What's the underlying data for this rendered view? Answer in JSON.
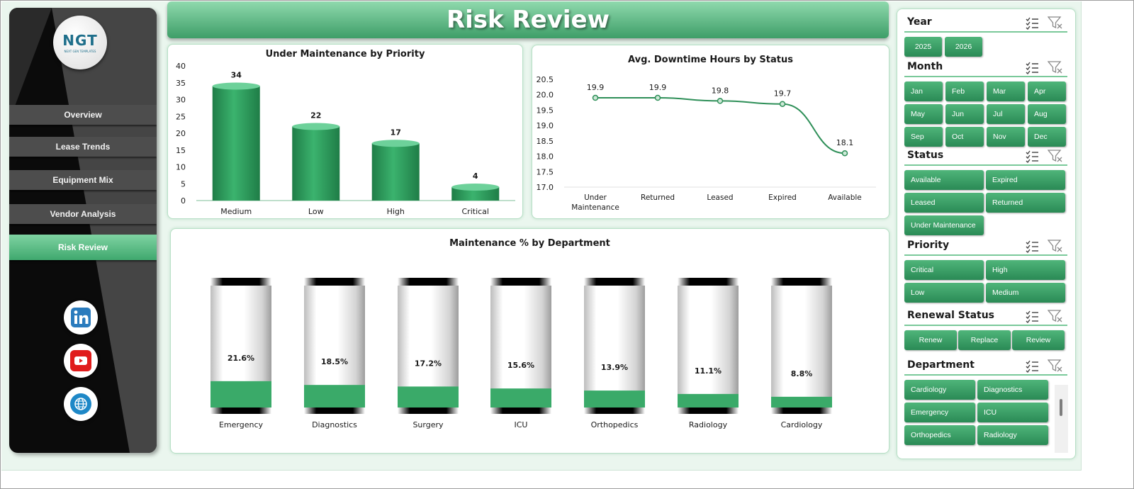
{
  "page": {
    "title": "Risk Review"
  },
  "sidebar": {
    "logo": {
      "text": "NGT",
      "tagline": "NEXT GEN TEMPLATES"
    },
    "nav": [
      {
        "label": "Overview",
        "active": false
      },
      {
        "label": "Lease Trends",
        "active": false
      },
      {
        "label": "Equipment Mix",
        "active": false
      },
      {
        "label": "Vendor Analysis",
        "active": false
      },
      {
        "label": "Risk Review",
        "active": true
      }
    ],
    "social": [
      {
        "icon": "linkedin-icon",
        "color": "#2a7bbd"
      },
      {
        "icon": "youtube-icon",
        "color": "#e01b1b"
      },
      {
        "icon": "globe-icon",
        "color": "#1e88c7"
      }
    ]
  },
  "colors": {
    "accent": "#2e9a5e",
    "accent_light": "#8fd9ad",
    "sidebar_bg": "#0b0b0b",
    "nav_bg": "#4d4d4d"
  },
  "charts": [
    {
      "id": "under-maintenance",
      "chart_data": {
        "type": "bar",
        "title": "Under Maintenance  by Priority",
        "categories": [
          "Medium",
          "Low",
          "High",
          "Critical"
        ],
        "values": [
          34,
          22,
          17,
          4
        ],
        "ylim": [
          0,
          40
        ],
        "yticks": [
          "0",
          "5",
          "10",
          "15",
          "20",
          "25",
          "30",
          "35",
          "40"
        ],
        "grid": false,
        "xlabel": "",
        "ylabel": ""
      }
    },
    {
      "id": "avg-downtime",
      "chart_data": {
        "type": "line",
        "title": "Avg. Downtime Hours by Status",
        "categories": [
          "Under Maintenance",
          "Returned",
          "Leased",
          "Expired",
          "Available"
        ],
        "values": [
          19.9,
          19.9,
          19.8,
          19.7,
          18.1
        ],
        "data_labels": [
          "19.9",
          "19.9",
          "19.8",
          "19.7",
          "18.1"
        ],
        "ylim": [
          17.0,
          20.5
        ],
        "yticks": [
          "17.0",
          "17.5",
          "18.0",
          "18.5",
          "19.0",
          "19.5",
          "20.0",
          "20.5"
        ],
        "grid": false,
        "xlabel": "",
        "ylabel": ""
      }
    },
    {
      "id": "maintenance-pct",
      "chart_data": {
        "type": "bar",
        "title": "Maintenance  % by Department",
        "categories": [
          "Emergency",
          "Diagnostics",
          "Surgery",
          "ICU",
          "Orthopedics",
          "Radiology",
          "Cardiology"
        ],
        "values": [
          21.6,
          18.5,
          17.2,
          15.6,
          13.9,
          11.1,
          8.8
        ],
        "data_labels": [
          "21.6%",
          "18.5%",
          "17.2%",
          "15.6%",
          "13.9%",
          "11.1%",
          "8.8%"
        ],
        "ylim": [
          0,
          100
        ],
        "grid": false,
        "xlabel": "",
        "ylabel": ""
      }
    }
  ],
  "slicers": [
    {
      "title": "Year",
      "items": [
        "2025",
        "2026"
      ]
    },
    {
      "title": "Month",
      "items": [
        "Jan",
        "Feb",
        "Mar",
        "Apr",
        "May",
        "Jun",
        "Jul",
        "Aug",
        "Sep",
        "Oct",
        "Nov",
        "Dec"
      ]
    },
    {
      "title": "Status",
      "items": [
        "Available",
        "Expired",
        "Leased",
        "Returned",
        "Under Maintenance"
      ]
    },
    {
      "title": "Priority",
      "items": [
        "Critical",
        "High",
        "Low",
        "Medium"
      ]
    },
    {
      "title": "Renewal Status",
      "items": [
        "Renew",
        "Replace",
        "Review"
      ]
    },
    {
      "title": "Department",
      "items": [
        "Cardiology",
        "Diagnostics",
        "Emergency",
        "ICU",
        "Orthopedics",
        "Radiology"
      ]
    }
  ],
  "slicer_icons": {
    "multi_select": "multi-select-icon",
    "clear_filter": "clear-filter-icon"
  }
}
